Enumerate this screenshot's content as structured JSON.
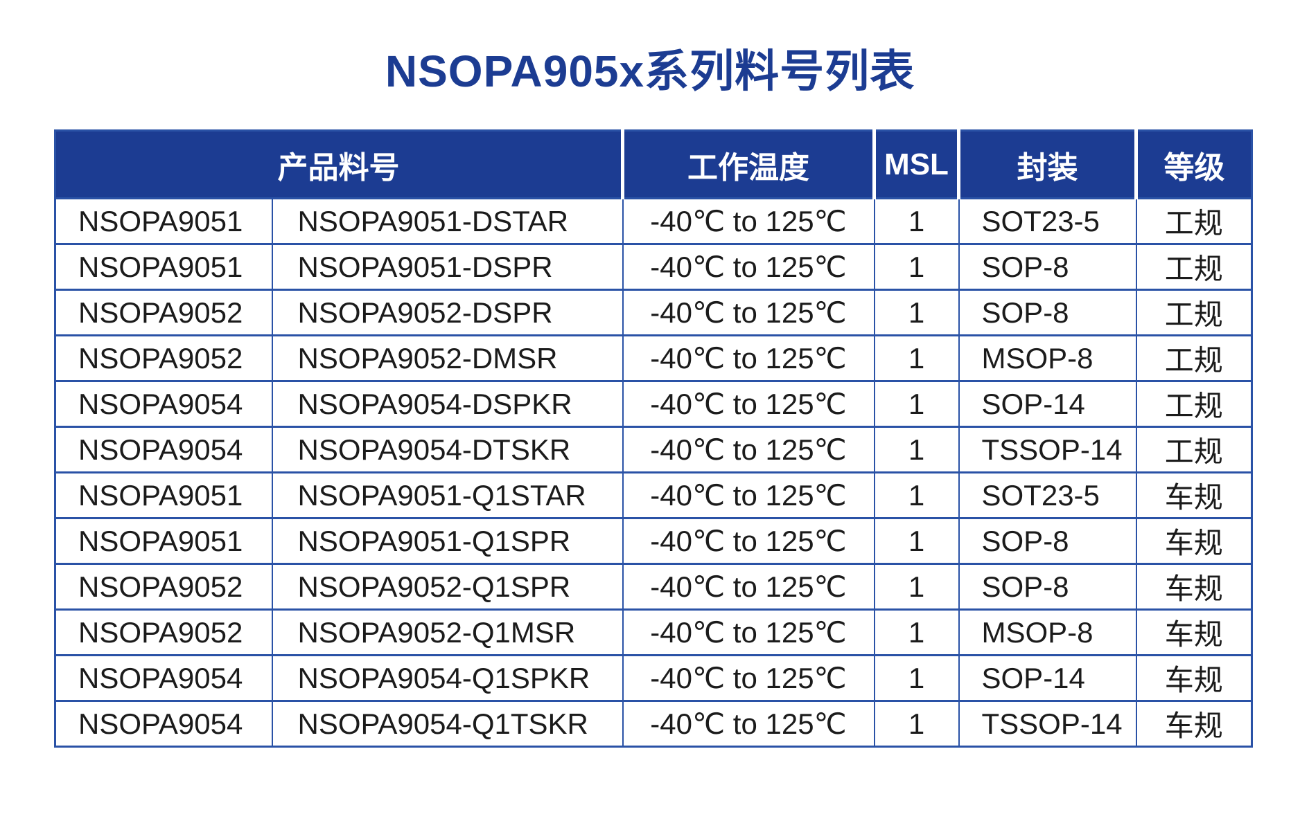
{
  "page": {
    "title": "NSOPA905x系列料号列表",
    "background": "#ffffff"
  },
  "colors": {
    "title_text": "#1c3c92",
    "header_bg": "#1c3c92",
    "header_text": "#ffffff",
    "border": "#2a52a6",
    "cell_text": "#1b1b1b"
  },
  "table": {
    "headers": [
      {
        "label": "产品料号",
        "colspan": "2"
      },
      {
        "label": "工作温度",
        "colspan": "1"
      },
      {
        "label": "MSL",
        "colspan": "1"
      },
      {
        "label": "封装",
        "colspan": "1"
      },
      {
        "label": "等级",
        "colspan": "1"
      }
    ],
    "rows": [
      [
        "NSOPA9051",
        "NSOPA9051-DSTAR",
        "-40℃ to 125℃",
        "1",
        "SOT23-5",
        "工规"
      ],
      [
        "NSOPA9051",
        "NSOPA9051-DSPR",
        "-40℃ to 125℃",
        "1",
        "SOP-8",
        "工规"
      ],
      [
        "NSOPA9052",
        "NSOPA9052-DSPR",
        "-40℃ to 125℃",
        "1",
        "SOP-8",
        "工规"
      ],
      [
        "NSOPA9052",
        "NSOPA9052-DMSR",
        "-40℃ to 125℃",
        "1",
        "MSOP-8",
        "工规"
      ],
      [
        "NSOPA9054",
        "NSOPA9054-DSPKR",
        "-40℃ to 125℃",
        "1",
        "SOP-14",
        "工规"
      ],
      [
        "NSOPA9054",
        "NSOPA9054-DTSKR",
        "-40℃ to 125℃",
        "1",
        "TSSOP-14",
        "工规"
      ],
      [
        "NSOPA9051",
        "NSOPA9051-Q1STAR",
        "-40℃ to 125℃",
        "1",
        "SOT23-5",
        "车规"
      ],
      [
        "NSOPA9051",
        "NSOPA9051-Q1SPR",
        "-40℃ to 125℃",
        "1",
        "SOP-8",
        "车规"
      ],
      [
        "NSOPA9052",
        "NSOPA9052-Q1SPR",
        "-40℃ to 125℃",
        "1",
        "SOP-8",
        "车规"
      ],
      [
        "NSOPA9052",
        "NSOPA9052-Q1MSR",
        "-40℃ to 125℃",
        "1",
        "MSOP-8",
        "车规"
      ],
      [
        "NSOPA9054",
        "NSOPA9054-Q1SPKR",
        "-40℃ to 125℃",
        "1",
        "SOP-14",
        "车规"
      ],
      [
        "NSOPA9054",
        "NSOPA9054-Q1TSKR",
        "-40℃ to 125℃",
        "1",
        "TSSOP-14",
        "车规"
      ]
    ]
  }
}
